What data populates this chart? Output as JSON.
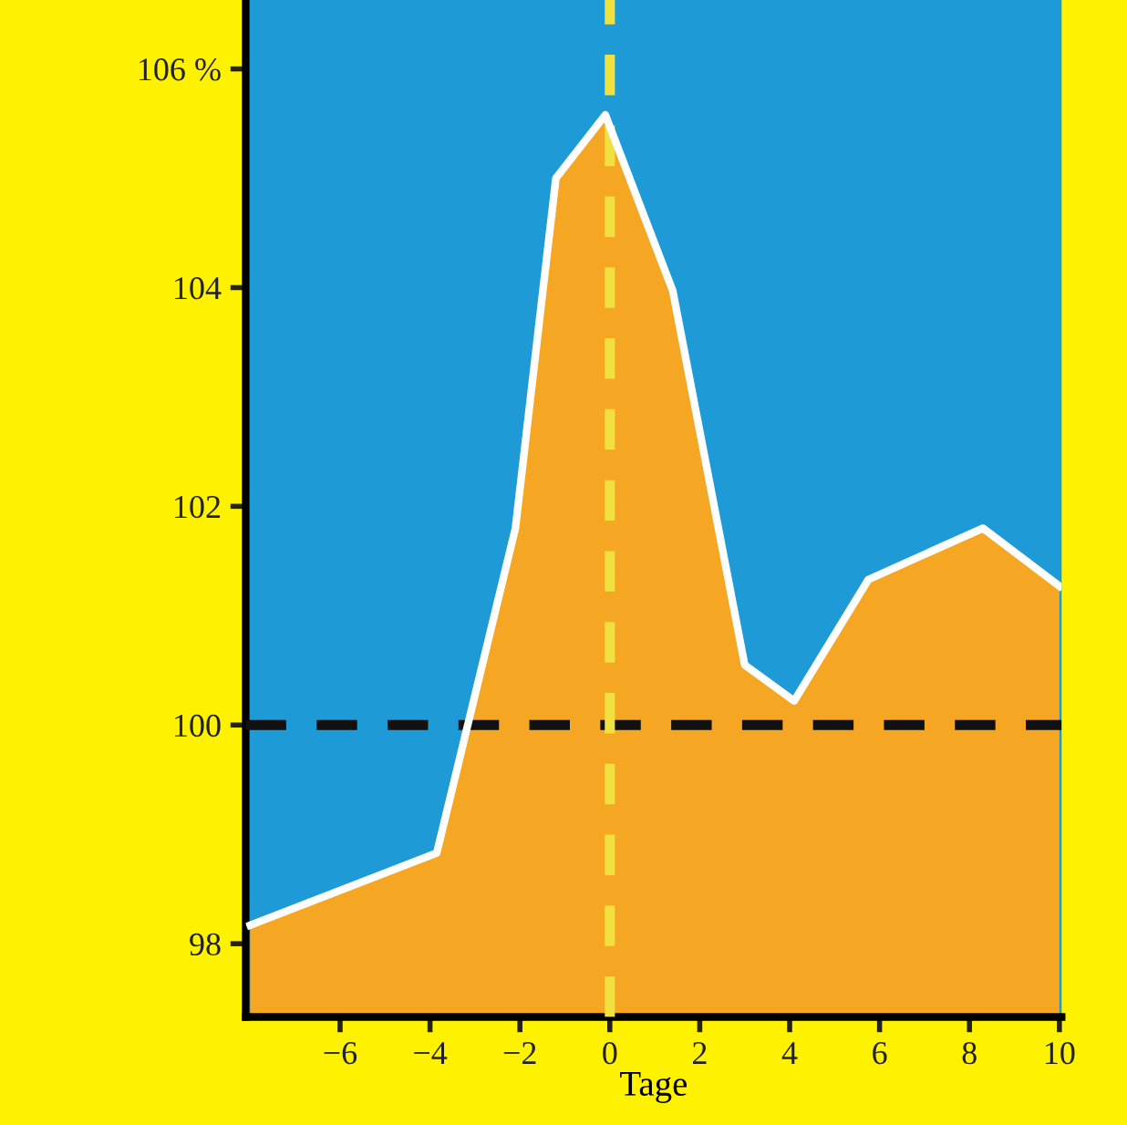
{
  "chart_data": {
    "type": "area",
    "xlabel": "Tage",
    "x": [
      -8,
      -3.85,
      -2.1,
      -1.2,
      -0.1,
      1.4,
      3.0,
      4.1,
      5.75,
      8.3,
      10
    ],
    "series": [
      {
        "color": "#f5a623",
        "values": [
          98.17,
          98.83,
          101.8,
          105.0,
          105.58,
          103.97,
          100.55,
          100.22,
          101.33,
          101.8,
          101.27
        ]
      }
    ],
    "xlim": [
      -8.1,
      10.05
    ],
    "ylim": [
      97.33,
      106.63
    ],
    "xticks": [
      {
        "value": -6,
        "label": "−6"
      },
      {
        "value": -4,
        "label": "−4"
      },
      {
        "value": -2,
        "label": "−2"
      },
      0,
      2,
      4,
      6,
      8,
      10
    ],
    "yticks": [
      98,
      100,
      102,
      104,
      {
        "value": 106,
        "label": "106 %"
      }
    ],
    "ref_lines": [
      {
        "axis": "y",
        "value": 100,
        "color": "#111111",
        "line_style": "dashed"
      },
      {
        "axis": "x",
        "value": 0,
        "color": "#f0e040",
        "line_style": "dashed"
      }
    ],
    "grid": false,
    "legend": false
  }
}
